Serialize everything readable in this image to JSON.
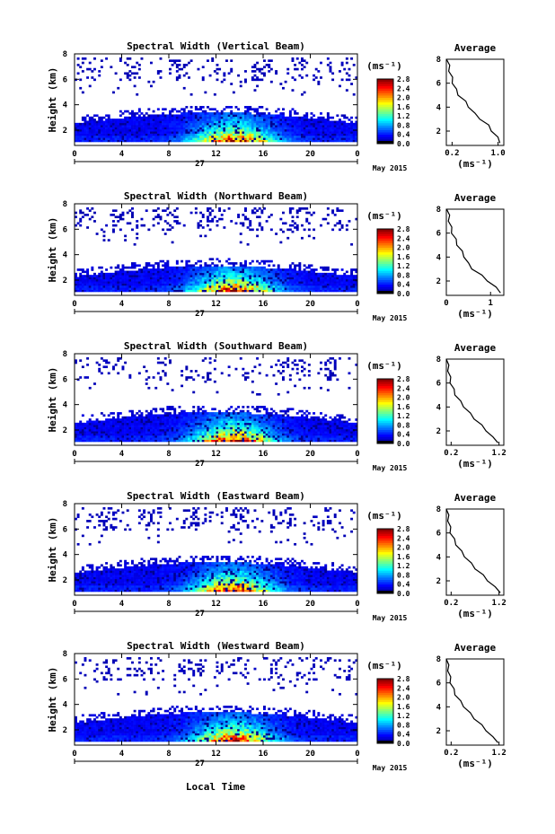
{
  "figure": {
    "date_label": "May 2015",
    "day_label": "27",
    "time_axis_label": "Local Time",
    "y_axis_label": "Height (km)",
    "cbar_unit": "(ms⁻¹)",
    "avg_title": "Average",
    "avg_xlabel": "(ms⁻¹)",
    "colors": {
      "jet": [
        "#00007f",
        "#0000ff",
        "#007fff",
        "#00ffff",
        "#7fff7f",
        "#ffff00",
        "#ff7f00",
        "#ff0000",
        "#7f0000"
      ],
      "bottom_band": "#000000"
    }
  },
  "chart_data": [
    {
      "type": "heatmap",
      "title": "Spectral Width (Vertical Beam)",
      "xlabel": "",
      "ylabel": "Height (km)",
      "x_ticks": [
        "0",
        "4",
        "8",
        "12",
        "16",
        "20",
        "0"
      ],
      "xlim": [
        0,
        24
      ],
      "y_ticks": [
        "2",
        "4",
        "6",
        "8"
      ],
      "ylim": [
        0.8,
        8
      ],
      "colorbar": {
        "ticks": [
          "0.0",
          "0.4",
          "0.8",
          "1.2",
          "1.6",
          "2.0",
          "2.4",
          "2.8"
        ],
        "range": [
          0,
          2.8
        ],
        "unit": "(ms⁻¹)"
      },
      "profile": {
        "title": "Average",
        "xlabel": "(ms⁻¹)",
        "x_ticks": [
          "0.2",
          "1.0"
        ],
        "xlim": [
          0.1,
          1.1
        ],
        "y_ticks": [
          "2",
          "4",
          "6",
          "8"
        ],
        "ylim": [
          0.8,
          8
        ],
        "x": [
          1.05,
          0.98,
          0.9,
          0.82,
          0.7,
          0.58,
          0.5,
          0.42,
          0.32,
          0.26,
          0.22,
          0.19,
          0.16,
          0.14,
          0.12
        ],
        "y": [
          1.0,
          1.5,
          2.0,
          2.5,
          3.0,
          3.5,
          4.0,
          4.5,
          5.0,
          5.5,
          6.0,
          6.5,
          7.0,
          7.5,
          8.0
        ]
      }
    },
    {
      "type": "heatmap",
      "title": "Spectral Width (Northward Beam)",
      "xlabel": "",
      "ylabel": "Height (km)",
      "x_ticks": [
        "0",
        "4",
        "8",
        "12",
        "16",
        "20",
        "0"
      ],
      "xlim": [
        0,
        24
      ],
      "y_ticks": [
        "2",
        "4",
        "6",
        "8"
      ],
      "ylim": [
        0.8,
        8
      ],
      "colorbar": {
        "ticks": [
          "0.0",
          "0.4",
          "0.8",
          "1.2",
          "1.6",
          "2.0",
          "2.4",
          "2.8"
        ],
        "range": [
          0,
          2.8
        ],
        "unit": "(ms⁻¹)"
      },
      "profile": {
        "title": "Average",
        "xlabel": "(ms⁻¹)",
        "x_ticks": [
          "0",
          "1"
        ],
        "xlim": [
          0,
          1.3
        ],
        "y_ticks": [
          "2",
          "4",
          "6",
          "8"
        ],
        "ylim": [
          0.8,
          8
        ],
        "x": [
          1.25,
          1.1,
          0.95,
          0.78,
          0.6,
          0.48,
          0.42,
          0.34,
          0.26,
          0.2,
          0.14,
          0.1,
          0.07,
          0.05,
          0.03
        ],
        "y": [
          1.0,
          1.5,
          2.0,
          2.5,
          3.0,
          3.5,
          4.0,
          4.5,
          5.0,
          5.5,
          6.0,
          6.5,
          7.0,
          7.5,
          8.0
        ]
      }
    },
    {
      "type": "heatmap",
      "title": "Spectral Width (Southward Beam)",
      "xlabel": "",
      "ylabel": "Height (km)",
      "x_ticks": [
        "0",
        "4",
        "8",
        "12",
        "16",
        "20",
        "0"
      ],
      "xlim": [
        0,
        24
      ],
      "y_ticks": [
        "2",
        "4",
        "6",
        "8"
      ],
      "ylim": [
        0.8,
        8
      ],
      "colorbar": {
        "ticks": [
          "0.0",
          "0.4",
          "0.8",
          "1.2",
          "1.6",
          "2.0",
          "2.4",
          "2.8"
        ],
        "range": [
          0,
          2.8
        ],
        "unit": "(ms⁻¹)"
      },
      "profile": {
        "title": "Average",
        "xlabel": "(ms⁻¹)",
        "x_ticks": [
          "0.2",
          "1.2"
        ],
        "xlim": [
          0.1,
          1.3
        ],
        "y_ticks": [
          "2",
          "4",
          "6",
          "8"
        ],
        "ylim": [
          0.8,
          8
        ],
        "x": [
          1.2,
          1.05,
          0.95,
          0.82,
          0.7,
          0.58,
          0.48,
          0.38,
          0.3,
          0.24,
          0.2,
          0.17,
          0.15,
          0.13,
          0.12
        ],
        "y": [
          1.0,
          1.5,
          2.0,
          2.5,
          3.0,
          3.5,
          4.0,
          4.5,
          5.0,
          5.5,
          6.0,
          6.5,
          7.0,
          7.5,
          8.0
        ]
      }
    },
    {
      "type": "heatmap",
      "title": "Spectral Width (Eastward Beam)",
      "xlabel": "",
      "ylabel": "Height (km)",
      "x_ticks": [
        "0",
        "4",
        "8",
        "12",
        "16",
        "20",
        "0"
      ],
      "xlim": [
        0,
        24
      ],
      "y_ticks": [
        "2",
        "4",
        "6",
        "8"
      ],
      "ylim": [
        0.8,
        8
      ],
      "colorbar": {
        "ticks": [
          "0.0",
          "0.4",
          "0.8",
          "1.2",
          "1.6",
          "2.0",
          "2.4",
          "2.8"
        ],
        "range": [
          0,
          2.8
        ],
        "unit": "(ms⁻¹)"
      },
      "profile": {
        "title": "Average",
        "xlabel": "(ms⁻¹)",
        "x_ticks": [
          "0.2",
          "1.2"
        ],
        "xlim": [
          0.1,
          1.3
        ],
        "y_ticks": [
          "2",
          "4",
          "6",
          "8"
        ],
        "ylim": [
          0.8,
          8
        ],
        "x": [
          1.25,
          1.1,
          0.98,
          0.85,
          0.72,
          0.6,
          0.5,
          0.4,
          0.32,
          0.25,
          0.2,
          0.17,
          0.15,
          0.13,
          0.12
        ],
        "y": [
          1.0,
          1.5,
          2.0,
          2.5,
          3.0,
          3.5,
          4.0,
          4.5,
          5.0,
          5.5,
          6.0,
          6.5,
          7.0,
          7.5,
          8.0
        ]
      }
    },
    {
      "type": "heatmap",
      "title": "Spectral Width (Westward Beam)",
      "xlabel": "Local Time",
      "ylabel": "Height (km)",
      "x_ticks": [
        "0",
        "4",
        "8",
        "12",
        "16",
        "20",
        "0"
      ],
      "xlim": [
        0,
        24
      ],
      "y_ticks": [
        "2",
        "4",
        "6",
        "8"
      ],
      "ylim": [
        0.8,
        8
      ],
      "colorbar": {
        "ticks": [
          "0.0",
          "0.4",
          "0.8",
          "1.2",
          "1.6",
          "2.0",
          "2.4",
          "2.8"
        ],
        "range": [
          0,
          2.8
        ],
        "unit": "(ms⁻¹)"
      },
      "profile": {
        "title": "Average",
        "xlabel": "(ms⁻¹)",
        "x_ticks": [
          "0.2",
          "1.2"
        ],
        "xlim": [
          0.1,
          1.3
        ],
        "y_ticks": [
          "2",
          "4",
          "6",
          "8"
        ],
        "ylim": [
          0.8,
          8
        ],
        "x": [
          1.2,
          1.05,
          0.95,
          0.82,
          0.7,
          0.58,
          0.48,
          0.38,
          0.3,
          0.24,
          0.2,
          0.17,
          0.15,
          0.13,
          0.12
        ],
        "y": [
          1.0,
          1.5,
          2.0,
          2.5,
          3.0,
          3.5,
          4.0,
          4.5,
          5.0,
          5.5,
          6.0,
          6.5,
          7.0,
          7.5,
          8.0
        ]
      }
    }
  ]
}
